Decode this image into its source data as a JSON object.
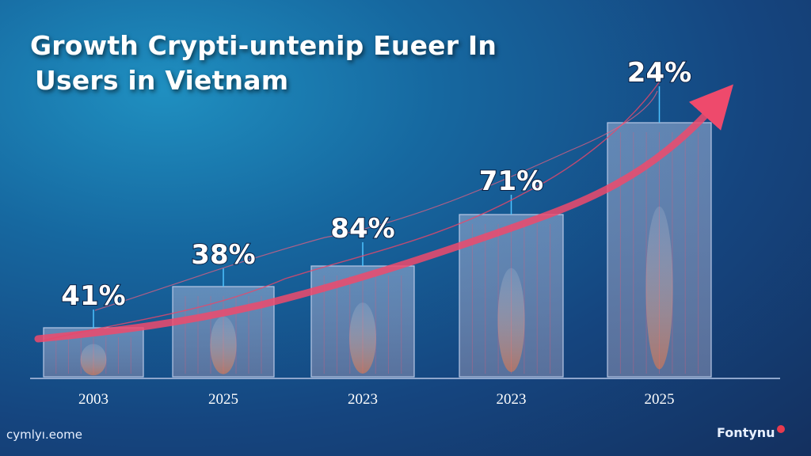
{
  "title_line1": "Growth Crypti-untenip Eueer In",
  "title_line2": "Users in Vietnam",
  "footer_left": "cymlyı.eome",
  "footer_right": "Fontynu",
  "colors": {
    "bar": "#7a8fb6",
    "trend": "#e8476a",
    "label": "#ffffff",
    "background": "#15457f"
  },
  "chart_data": {
    "type": "bar",
    "categories": [
      "2003",
      "2025",
      "2023",
      "2023",
      "2025"
    ],
    "values": [
      41,
      38,
      84,
      71,
      24
    ],
    "value_labels": [
      "41%",
      "38%",
      "84%",
      "71%",
      "24%"
    ],
    "trend": "up",
    "grid": false,
    "legend": "none"
  }
}
